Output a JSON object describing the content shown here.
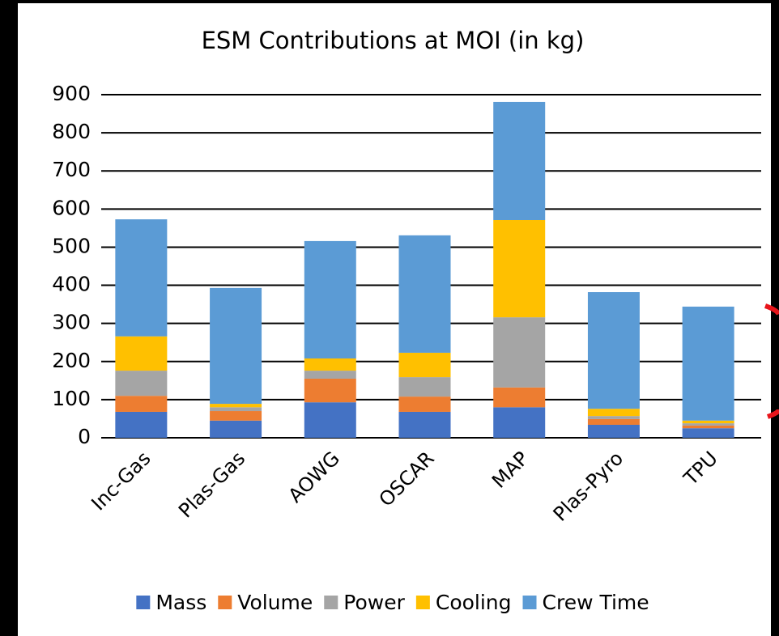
{
  "chart_data": {
    "type": "stacked_bar",
    "title": "ESM Contributions at MOI (in kg)",
    "categories": [
      "Inc-Gas",
      "Plas-Gas",
      "AOWG",
      "OSCAR",
      "MAP",
      "Plas-Pyro",
      "TPU"
    ],
    "series": [
      {
        "name": "Mass",
        "color": "#4472c4",
        "values": [
          68,
          45,
          93,
          68,
          80,
          34,
          25
        ]
      },
      {
        "name": "Volume",
        "color": "#ed7d31",
        "values": [
          42,
          25,
          62,
          40,
          52,
          15,
          7
        ]
      },
      {
        "name": "Power",
        "color": "#a5a5a5",
        "values": [
          66,
          10,
          21,
          51,
          184,
          8,
          6
        ]
      },
      {
        "name": "Cooling",
        "color": "#ffc000",
        "values": [
          90,
          9,
          32,
          64,
          255,
          19,
          7
        ]
      },
      {
        "name": "Crew Time",
        "color": "#5b9bd5",
        "values": [
          307,
          304,
          308,
          308,
          310,
          306,
          299
        ]
      }
    ],
    "ylim": [
      0,
      900
    ],
    "yticks": [
      0,
      100,
      200,
      300,
      400,
      500,
      600,
      700,
      800,
      900
    ],
    "grid": true,
    "legend": "bottom"
  }
}
